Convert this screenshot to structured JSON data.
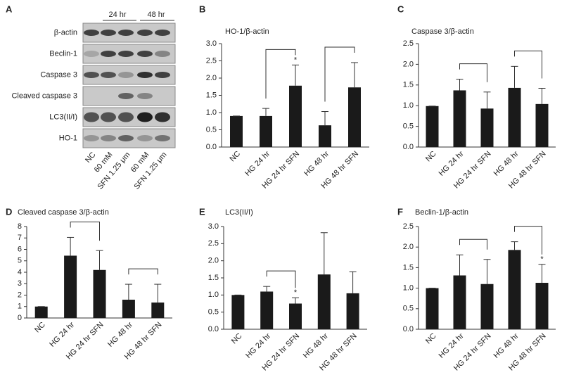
{
  "panel_a": {
    "label": "A",
    "time_groups": [
      "24 hr",
      "48 hr"
    ],
    "rows": [
      "β-actin",
      "Beclin-1",
      "Caspase 3",
      "Cleaved caspase 3",
      "LC3(II/I)",
      "HO-1"
    ],
    "lanes": [
      "NC",
      "60 mM",
      "SFN 1.25 μm",
      "60 mM",
      "SFN 1.25 μm"
    ]
  },
  "chart_data": [
    {
      "type": "bar",
      "panel": "B",
      "title": "HO-1/β-actin",
      "color": "#1a1a1a",
      "categories": [
        "NC",
        "HG 24 hr",
        "HG 24 hr SFN",
        "HG 48 hr",
        "HG 48 hr SFN"
      ],
      "values": [
        0.9,
        0.9,
        1.78,
        0.63,
        1.73
      ],
      "errors": [
        0,
        0.22,
        0.6,
        0.4,
        0.72
      ],
      "significance": [
        null,
        null,
        "*",
        null,
        null
      ],
      "comparisons": [
        {
          "categories": [
            "HG 24 hr",
            "HG 24 hr SFN"
          ]
        },
        {
          "categories": [
            "HG 48 hr",
            "HG 48 hr SFN"
          ]
        }
      ],
      "ylim": [
        0,
        3
      ],
      "yticks": [
        {
          "value": 0,
          "label": "0.0"
        },
        0.5,
        {
          "value": 1,
          "label": "1.0"
        },
        1.5,
        {
          "value": 2,
          "label": "2.0"
        },
        2.5,
        {
          "value": 3,
          "label": "3.0"
        }
      ],
      "grid": false
    },
    {
      "type": "bar",
      "panel": "C",
      "title": "Caspase 3/β-actin",
      "color": "#1a1a1a",
      "categories": [
        "NC",
        "HG 24 hr",
        "HG 24 hr SFN",
        "HG 48 hr",
        "HG 48 hr SFN"
      ],
      "values": [
        0.99,
        1.37,
        0.93,
        1.43,
        1.04
      ],
      "errors": [
        0,
        0.27,
        0.4,
        0.52,
        0.38
      ],
      "significance": [
        null,
        null,
        null,
        null,
        null
      ],
      "comparisons": [
        {
          "categories": [
            "HG 24 hr",
            "HG 24 hr SFN"
          ]
        },
        {
          "categories": [
            "HG 48 hr",
            "HG 48 hr SFN"
          ]
        }
      ],
      "ylim": [
        0,
        2.5
      ],
      "yticks": [
        {
          "value": 0,
          "label": "0.0"
        },
        0.5,
        {
          "value": 1,
          "label": "1.0"
        },
        1.5,
        {
          "value": 2,
          "label": "2.0"
        },
        2.5
      ],
      "grid": false
    },
    {
      "type": "bar",
      "panel": "D",
      "title": "Cleaved caspase 3/β-actin",
      "color": "#1a1a1a",
      "categories": [
        "NC",
        "HG 24 hr",
        "HG 24 hr SFN",
        "HG 48 hr",
        "HG 48 hr SFN"
      ],
      "values": [
        1.0,
        5.45,
        4.2,
        1.6,
        1.35
      ],
      "errors": [
        0,
        1.6,
        1.7,
        1.35,
        1.6
      ],
      "significance": [
        null,
        null,
        null,
        null,
        null
      ],
      "comparisons": [
        {
          "categories": [
            "HG 24 hr",
            "HG 24 hr SFN"
          ]
        },
        {
          "categories": [
            "HG 48 hr",
            "HG 48 hr SFN"
          ]
        }
      ],
      "ylim": [
        0,
        8
      ],
      "yticks": [
        0,
        1,
        2,
        3,
        4,
        5,
        6,
        7,
        8
      ],
      "grid": false
    },
    {
      "type": "bar",
      "panel": "E",
      "title": "LC3(II/I)",
      "color": "#1a1a1a",
      "categories": [
        "NC",
        "HG 24 hr",
        "HG 24 hr SFN",
        "HG 48 hr",
        "HG 48 hr SFN"
      ],
      "values": [
        1.0,
        1.1,
        0.75,
        1.6,
        1.05
      ],
      "errors": [
        0,
        0.15,
        0.17,
        1.22,
        0.63
      ],
      "significance": [
        null,
        null,
        "*",
        null,
        null
      ],
      "comparisons": [
        {
          "categories": [
            "HG 24 hr",
            "HG 24 hr SFN"
          ]
        }
      ],
      "ylim": [
        0,
        3
      ],
      "yticks": [
        {
          "value": 0,
          "label": "0.0"
        },
        0.5,
        {
          "value": 1,
          "label": "1.0"
        },
        1.5,
        {
          "value": 2,
          "label": "2.0"
        },
        2.5,
        {
          "value": 3,
          "label": "3.0"
        }
      ],
      "grid": false
    },
    {
      "type": "bar",
      "panel": "F",
      "title": "Beclin-1/β-actin",
      "color": "#1a1a1a",
      "categories": [
        "NC",
        "HG 24 hr",
        "HG 24 hr SFN",
        "HG 48 hr",
        "HG 48 hr SFN"
      ],
      "values": [
        1.0,
        1.31,
        1.1,
        1.93,
        1.13
      ],
      "errors": [
        0,
        0.5,
        0.6,
        0.2,
        0.45
      ],
      "significance": [
        null,
        null,
        null,
        null,
        "*"
      ],
      "comparisons": [
        {
          "categories": [
            "HG 24 hr",
            "HG 24 hr SFN"
          ]
        },
        {
          "categories": [
            "HG 48 hr",
            "HG 48 hr SFN"
          ]
        }
      ],
      "ylim": [
        0,
        2.5
      ],
      "yticks": [
        {
          "value": 0,
          "label": "0.0"
        },
        0.5,
        {
          "value": 1,
          "label": "1.0"
        },
        1.5,
        {
          "value": 2,
          "label": "2.0"
        },
        2.5
      ],
      "grid": false
    }
  ]
}
